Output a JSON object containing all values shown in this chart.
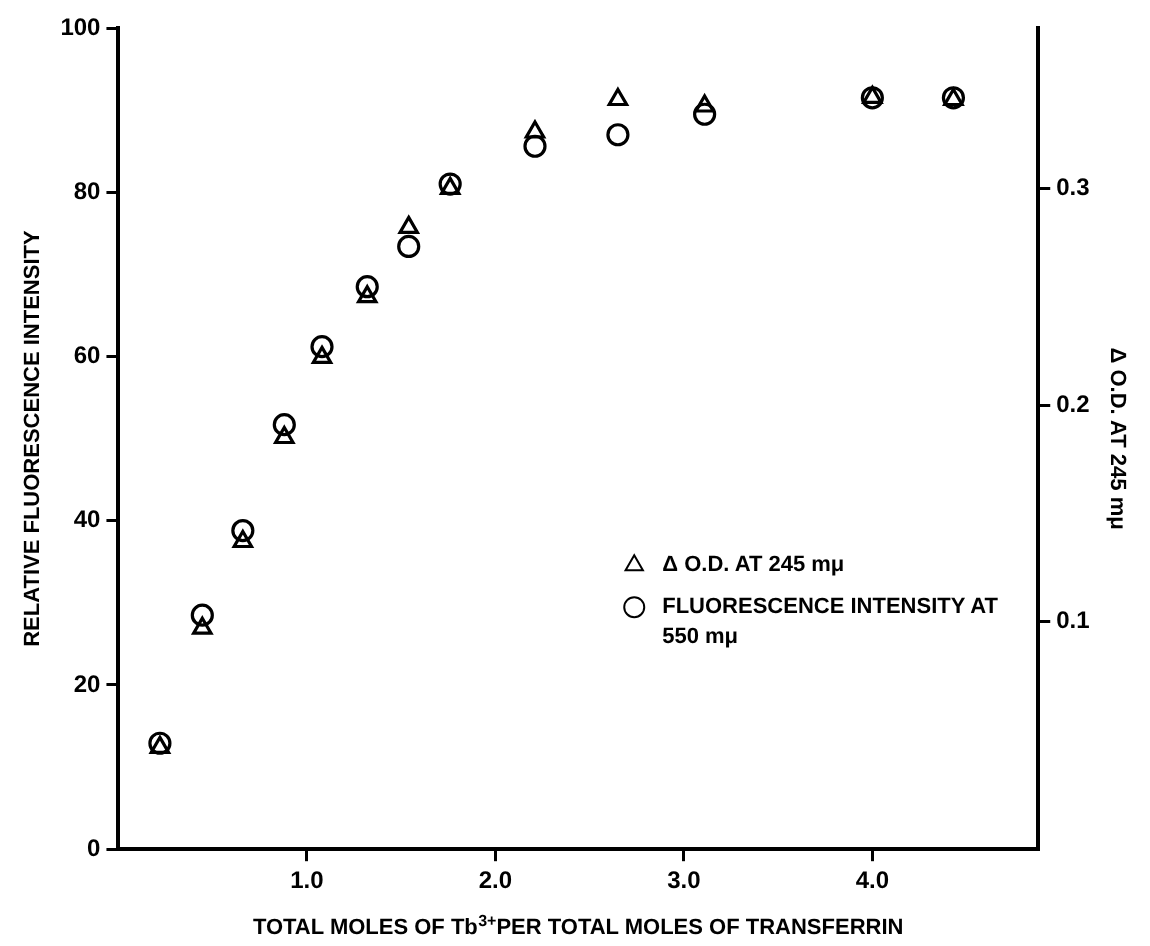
{
  "chart_data": {
    "type": "scatter",
    "xlabel": "TOTAL MOLES OF Tb$^{3+}$PER TOTAL MOLES OF TRANSFERRIN",
    "ylabel": "RELATIVE FLUORESCENCE INTENSITY",
    "y2label": "Δ O.D. AT 245 mμ",
    "x": [
      0.22,
      0.445,
      0.66,
      0.88,
      1.08,
      1.32,
      1.54,
      1.76,
      2.21,
      2.65,
      3.11,
      4.0,
      4.43
    ],
    "series": [
      {
        "name": "Δ O.D. AT 245 mμ",
        "color": "#000000",
        "marker": "triangle",
        "axis": "y2",
        "values": [
          0.042,
          0.097,
          0.137,
          0.185,
          0.222,
          0.25,
          0.282,
          0.3,
          0.326,
          0.341,
          0.338,
          0.342,
          0.341
        ]
      },
      {
        "name": "FLUORESCENCE INTENSITY AT 550 mμ",
        "color": "#000000",
        "marker": "circle",
        "values": [
          12.9,
          28.5,
          38.8,
          51.7,
          61.2,
          68.5,
          73.4,
          81,
          85.6,
          87,
          89.5,
          91.5,
          91.5
        ]
      }
    ],
    "xlim": [
      0,
      4.88
    ],
    "xticks": [
      {
        "value": 1,
        "label": "1.0"
      },
      {
        "value": 2,
        "label": "2.0"
      },
      {
        "value": 3,
        "label": "3.0"
      },
      {
        "value": 4,
        "label": "4.0"
      }
    ],
    "ylim": [
      0,
      100
    ],
    "yticks": [
      0,
      20,
      40,
      60,
      80,
      100
    ],
    "y2lim": [
      -0.005,
      0.374
    ],
    "y2ticks": [
      0.1,
      0.2,
      0.3
    ],
    "grid": false,
    "legend": "bottom right"
  }
}
